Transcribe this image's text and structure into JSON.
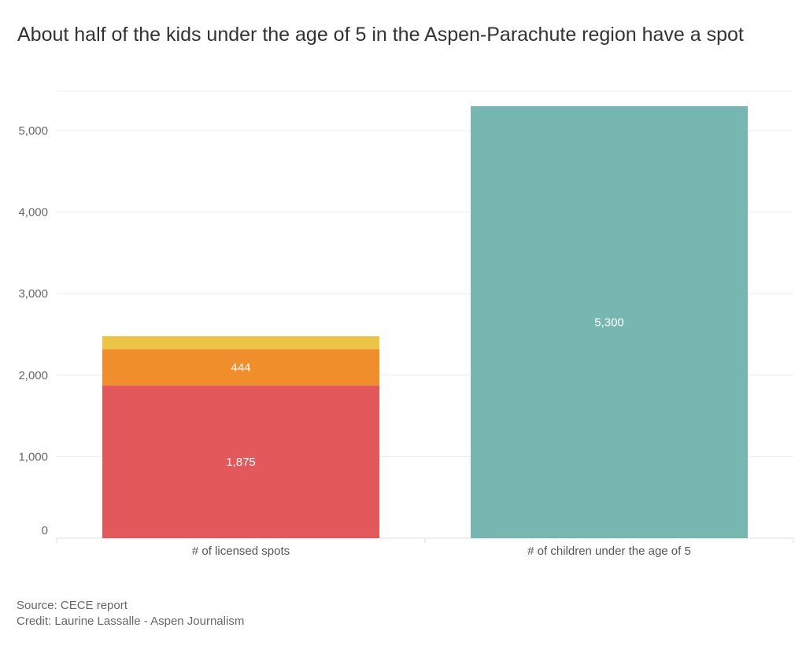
{
  "chart_data": {
    "type": "bar",
    "stacked": true,
    "title": "About half of the kids under the age of 5 in the Aspen-Parachute region have a spot",
    "xlabel": "",
    "ylabel": "",
    "ylim": [
      0,
      5300
    ],
    "yticks": [
      0,
      1000,
      2000,
      3000,
      4000,
      5000
    ],
    "ytick_labels": [
      "0",
      "1,000",
      "2,000",
      "3,000",
      "4,000",
      "5,000"
    ],
    "grid": true,
    "categories": [
      "# of licensed spots",
      "# of children under the age of 5"
    ],
    "series": [
      {
        "values": [
          1875,
          0
        ],
        "labels": [
          "1,875",
          ""
        ],
        "color": "#e3585b"
      },
      {
        "values": [
          444,
          0
        ],
        "labels": [
          "444",
          ""
        ],
        "color": "#f08e2c"
      },
      {
        "values": [
          160,
          0
        ],
        "labels": [
          "",
          ""
        ],
        "color": "#ecc445"
      },
      {
        "values": [
          0,
          5300
        ],
        "labels": [
          "",
          "5,300"
        ],
        "color": "#76b7b2"
      }
    ]
  },
  "footer": {
    "source": "Source: CECE report",
    "credit": "Credit: Laurine Lassalle - Aspen Journalism"
  }
}
